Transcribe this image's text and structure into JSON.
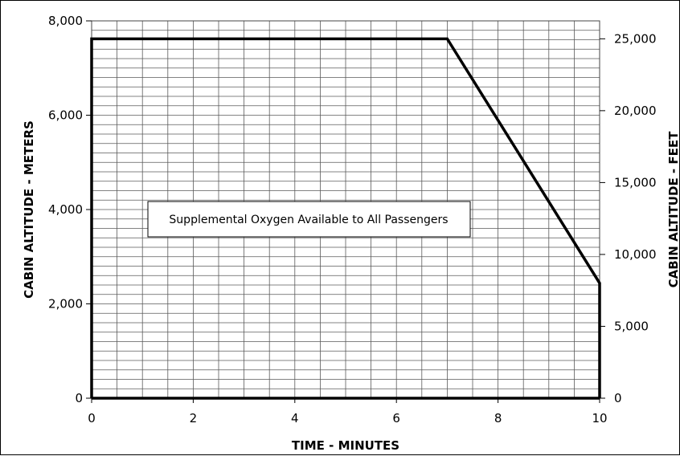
{
  "chart_data": {
    "type": "area",
    "x_label": "TIME - MINUTES",
    "y_left_label": "CABIN ALTITUDE - METERS",
    "y_right_label": "CABIN ALTITUDE - FEET",
    "xlim": [
      0,
      10
    ],
    "ylim_meters": [
      0,
      8000
    ],
    "ylim_feet": [
      0,
      26247
    ],
    "x_ticks": [
      0,
      2,
      4,
      6,
      8,
      10
    ],
    "x_tick_labels": [
      "0",
      "2",
      "4",
      "6",
      "8",
      "10"
    ],
    "y_left_ticks": [
      0,
      2000,
      4000,
      6000,
      8000
    ],
    "y_left_tick_labels": [
      "0",
      "2,000",
      "4,000",
      "6,000",
      "8,000"
    ],
    "y_right_ticks": [
      0,
      5000,
      10000,
      15000,
      20000,
      25000
    ],
    "y_right_tick_labels": [
      "0",
      "5,000",
      "10,000",
      "15,000",
      "20,000",
      "25,000"
    ],
    "grid": true,
    "boundary": {
      "x": [
        0,
        0,
        7,
        10,
        10
      ],
      "y_meters": [
        0,
        7620,
        7620,
        2440,
        0
      ]
    },
    "annotation": "Supplemental Oxygen Available to All Passengers"
  }
}
